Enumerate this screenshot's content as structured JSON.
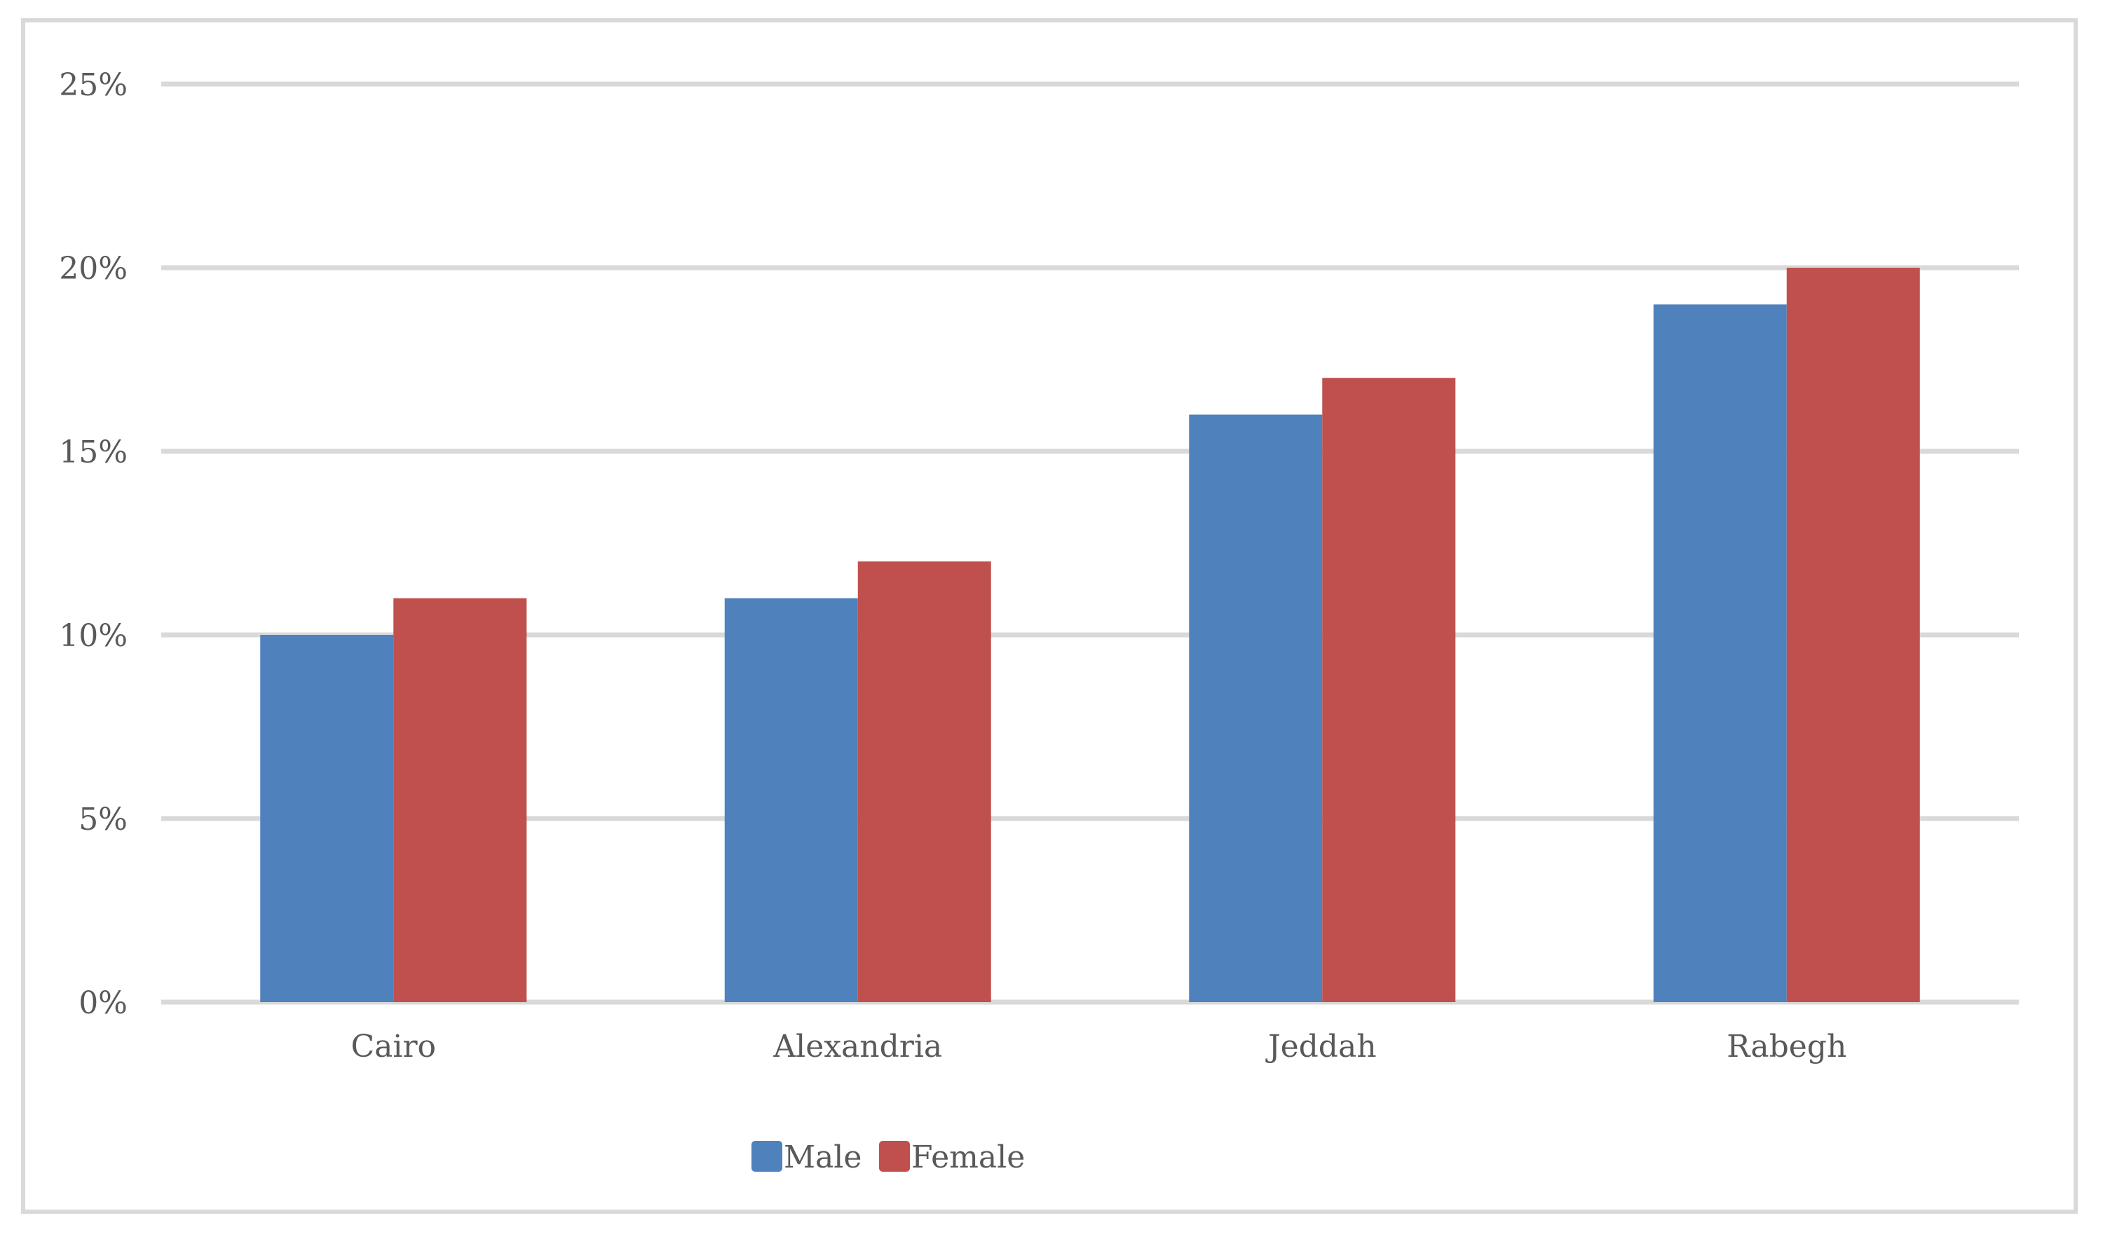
{
  "chart_data": {
    "type": "bar",
    "categories": [
      "Cairo",
      "Alexandria",
      "Jeddah",
      "Rabegh"
    ],
    "series": [
      {
        "name": "Male",
        "values": [
          10,
          11,
          16,
          19
        ],
        "color": "#4f81bd"
      },
      {
        "name": "Female",
        "values": [
          11,
          12,
          17,
          20
        ],
        "color": "#c0504d"
      }
    ],
    "y_ticks": [
      "0%",
      "5%",
      "10%",
      "15%",
      "20%",
      "25%"
    ],
    "ylim": [
      0,
      25
    ],
    "y_unit": "%",
    "grid": true,
    "legend_position": "bottom",
    "title": "",
    "xlabel": "",
    "ylabel": ""
  },
  "colors": {
    "gridline": "#d9d9d9",
    "text": "#595959",
    "frame": "#d9d9d9"
  }
}
